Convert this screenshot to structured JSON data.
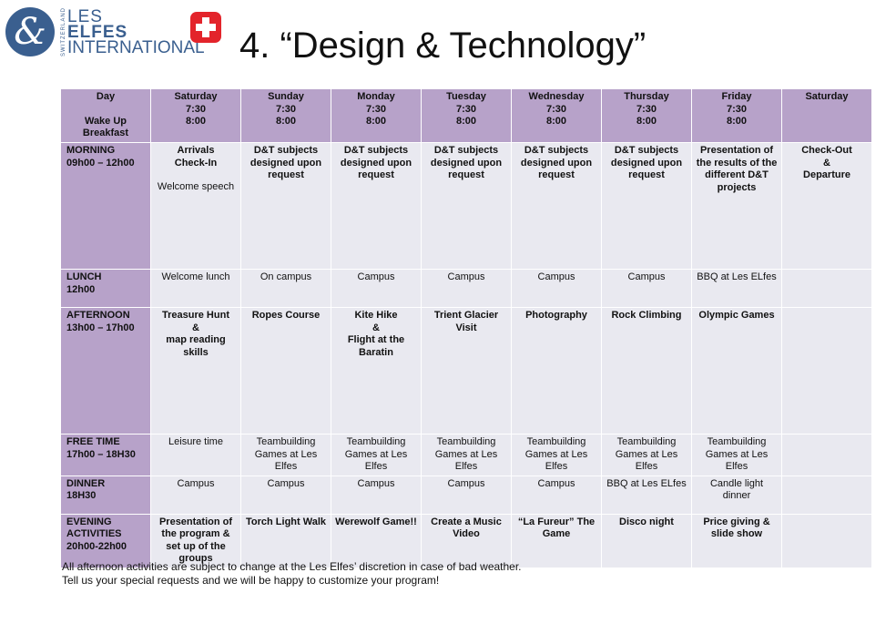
{
  "logo": {
    "side_text": "SWITZERLAND",
    "line1": "LES",
    "line2": "ELFES",
    "line3": "INTERNATIONAL",
    "brand_color": "#3a5f8f",
    "flag_color": "#e3242b"
  },
  "title": "4. “Design & Technology”",
  "header": {
    "day_label": "Day",
    "wake_label": "Wake Up",
    "breakfast_label": "Breakfast",
    "days": [
      {
        "name": "Saturday",
        "wake": "7:30",
        "breakfast": "8:00"
      },
      {
        "name": "Sunday",
        "wake": "7:30",
        "breakfast": "8:00"
      },
      {
        "name": "Monday",
        "wake": "7:30",
        "breakfast": "8:00"
      },
      {
        "name": "Tuesday",
        "wake": "7:30",
        "breakfast": "8:00"
      },
      {
        "name": "Wednesday",
        "wake": "7:30",
        "breakfast": "8:00"
      },
      {
        "name": "Thursday",
        "wake": "7:30",
        "breakfast": "8:00"
      },
      {
        "name": "Friday",
        "wake": "7:30",
        "breakfast": "8:00"
      },
      {
        "name": "Saturday",
        "wake": "",
        "breakfast": ""
      }
    ]
  },
  "rows": {
    "morning": {
      "label": "MORNING",
      "time": "09h00 – 12h00",
      "cells": [
        "Arrivals\nCheck-In",
        "D&T subjects designed upon request",
        "D&T subjects designed upon request",
        "D&T subjects designed upon request",
        "D&T subjects designed upon request",
        "D&T subjects designed upon request",
        "Presentation of the results of the different D&T projects",
        "Check-Out\n&\nDeparture"
      ],
      "extra": "Welcome speech"
    },
    "lunch": {
      "label": "LUNCH",
      "time": "12h00",
      "cells": [
        "Welcome lunch",
        "On campus",
        "Campus",
        "Campus",
        "Campus",
        "Campus",
        "BBQ at Les ELfes",
        ""
      ]
    },
    "afternoon": {
      "label": "AFTERNOON",
      "time": "13h00 – 17h00",
      "cells": [
        "Treasure Hunt\n&\nmap reading skills",
        "Ropes Course",
        "Kite Hike\n&\nFlight at the Baratin",
        "Trient Glacier Visit",
        "Photography",
        "Rock Climbing",
        "Olympic Games",
        ""
      ]
    },
    "free_time": {
      "label": "FREE TIME",
      "time": "17h00 – 18H30",
      "cells": [
        "Leisure time",
        "Teambuilding Games at Les Elfes",
        "Teambuilding Games at Les Elfes",
        "Teambuilding Games at Les Elfes",
        "Teambuilding Games at Les Elfes",
        "Teambuilding Games at Les Elfes",
        "Teambuilding Games at Les Elfes",
        ""
      ]
    },
    "dinner": {
      "label": "DINNER",
      "time": "18H30",
      "cells": [
        "Campus",
        "Campus",
        "Campus",
        "Campus",
        "Campus",
        "BBQ at Les ELfes",
        "Candle light dinner",
        ""
      ]
    },
    "evening": {
      "label": "EVENING ACTIVITIES",
      "time": "20h00-22h00",
      "cells": [
        "Presentation of the program & set up of the groups",
        "Torch Light Walk",
        "Werewolf Game!!",
        "Create a Music Video",
        "“La Fureur” The Game",
        "Disco night",
        "Price giving & slide show",
        ""
      ]
    }
  },
  "footer": {
    "line1": "All afternoon activities are subject to change at the Les Elfes’ discretion in case of bad weather.",
    "line2": "Tell us your special requests and we will be happy to customize your program!"
  },
  "colors": {
    "header_bg": "#b7a2c9",
    "cell_bg": "#e9e9f0"
  }
}
